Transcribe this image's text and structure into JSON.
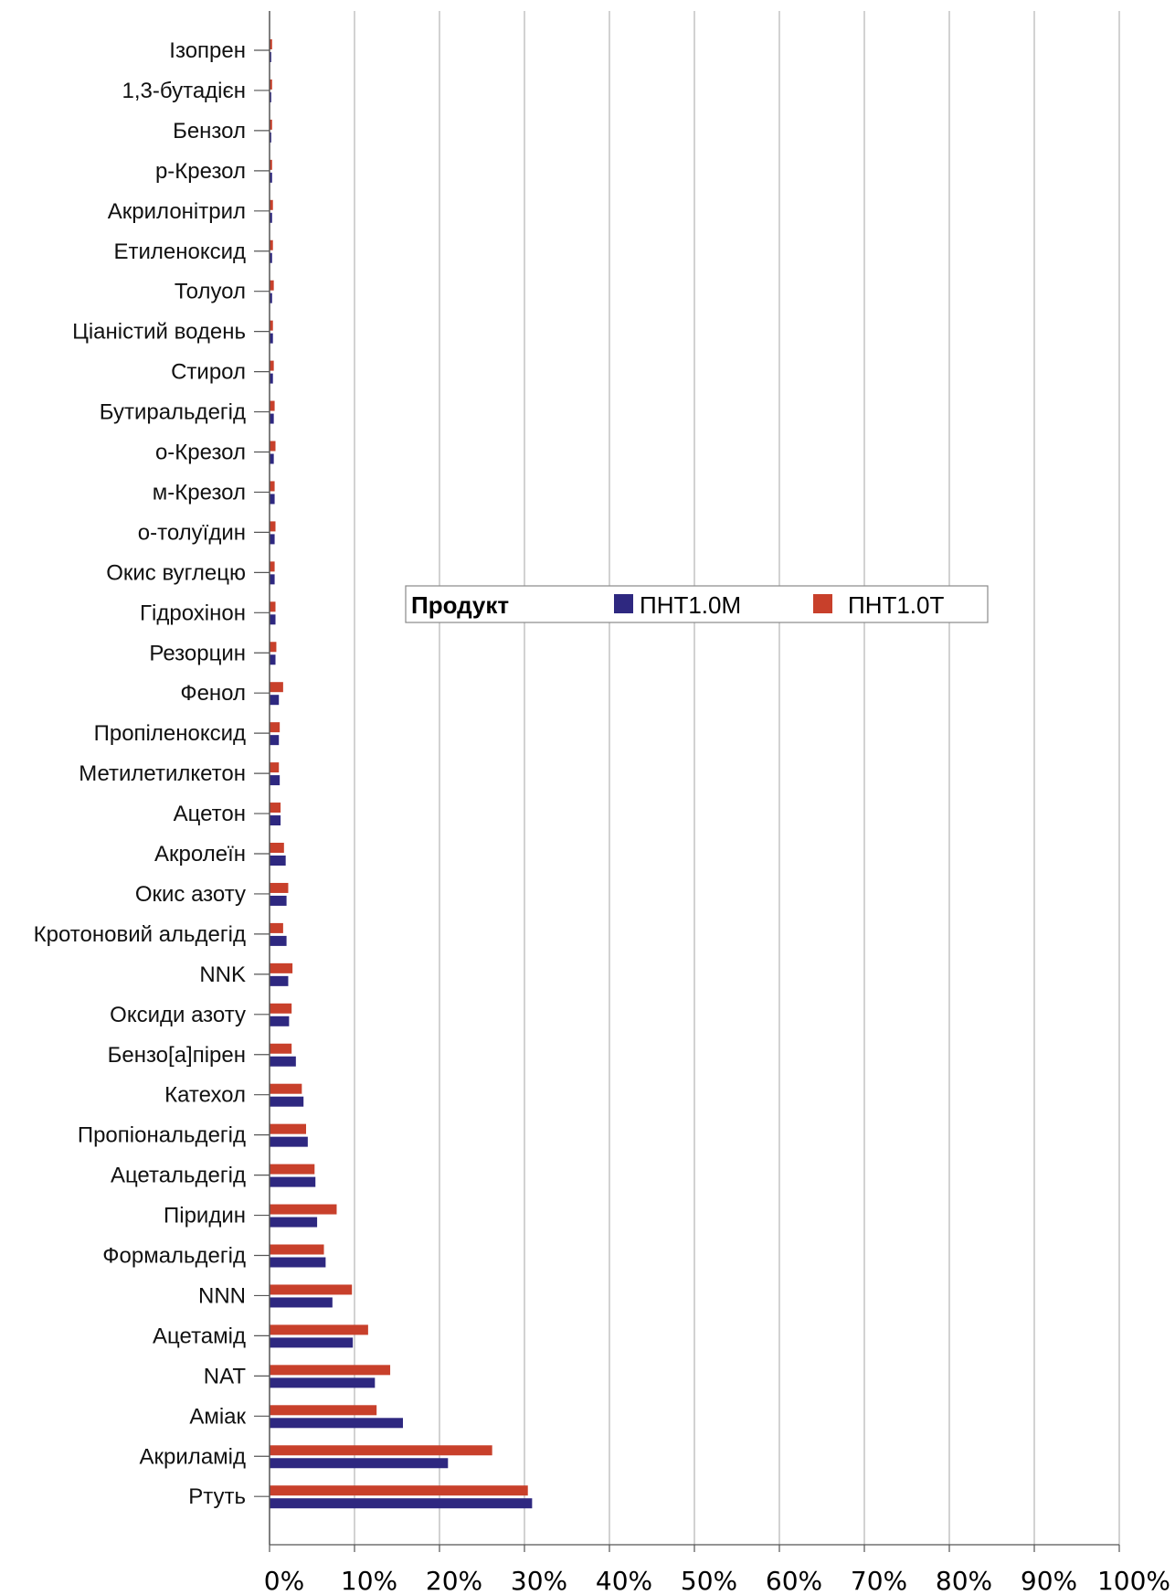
{
  "chart_data": {
    "type": "bar",
    "orientation": "horizontal",
    "categories": [
      "Ізопрен",
      "1,3-бутадієн",
      "Бензол",
      "р-Крезол",
      "Акрилонітрил",
      "Етиленоксид",
      "Толуол",
      "Ціаністий водень",
      "Стирол",
      "Бутиральдегід",
      "о-Крезол",
      "м-Крезол",
      "о-толуїдин",
      "Окис вуглецю",
      "Гідрохінон",
      "Резорцин",
      "Фенол",
      "Пропіленоксид",
      "Метилетилкетон",
      "Ацетон",
      "Акролеїн",
      "Окис азоту",
      "Кротоновий альдегід",
      "NNK",
      "Оксиди азоту",
      "Бензо[а]пірен",
      "Катехол",
      "Пропіональдегід",
      "Ацетальдегід",
      "Піридин",
      "Формальдегід",
      "NNN",
      "Ацетамід",
      "NAT",
      "Аміак",
      "Акриламід",
      "Ртуть"
    ],
    "series": [
      {
        "name": "ПНТ1.0М",
        "color": "#2e2880",
        "values": [
          0.2,
          0.2,
          0.2,
          0.3,
          0.3,
          0.3,
          0.3,
          0.4,
          0.4,
          0.5,
          0.5,
          0.6,
          0.6,
          0.6,
          0.7,
          0.7,
          1.1,
          1.1,
          1.2,
          1.3,
          1.9,
          2.0,
          2.0,
          2.2,
          2.3,
          3.1,
          4.0,
          4.5,
          5.4,
          5.6,
          6.6,
          7.4,
          9.8,
          12.4,
          15.7,
          21.0,
          30.9
        ]
      },
      {
        "name": "ПНТ1.0Т",
        "color": "#c8402b",
        "values": [
          0.3,
          0.3,
          0.3,
          0.3,
          0.4,
          0.4,
          0.5,
          0.4,
          0.5,
          0.6,
          0.7,
          0.6,
          0.7,
          0.6,
          0.7,
          0.8,
          1.6,
          1.2,
          1.1,
          1.3,
          1.7,
          2.2,
          1.6,
          2.7,
          2.6,
          2.6,
          3.8,
          4.3,
          5.3,
          7.9,
          6.4,
          9.7,
          11.6,
          14.2,
          12.6,
          26.2,
          30.4
        ]
      }
    ],
    "x_ticks": [
      "0%",
      "10%",
      "20%",
      "30%",
      "40%",
      "50%",
      "60%",
      "70%",
      "80%",
      "90%",
      "100%"
    ],
    "xlim": [
      0,
      100
    ],
    "grid": true,
    "legend": {
      "title": "Продукт",
      "placement": "center"
    }
  }
}
